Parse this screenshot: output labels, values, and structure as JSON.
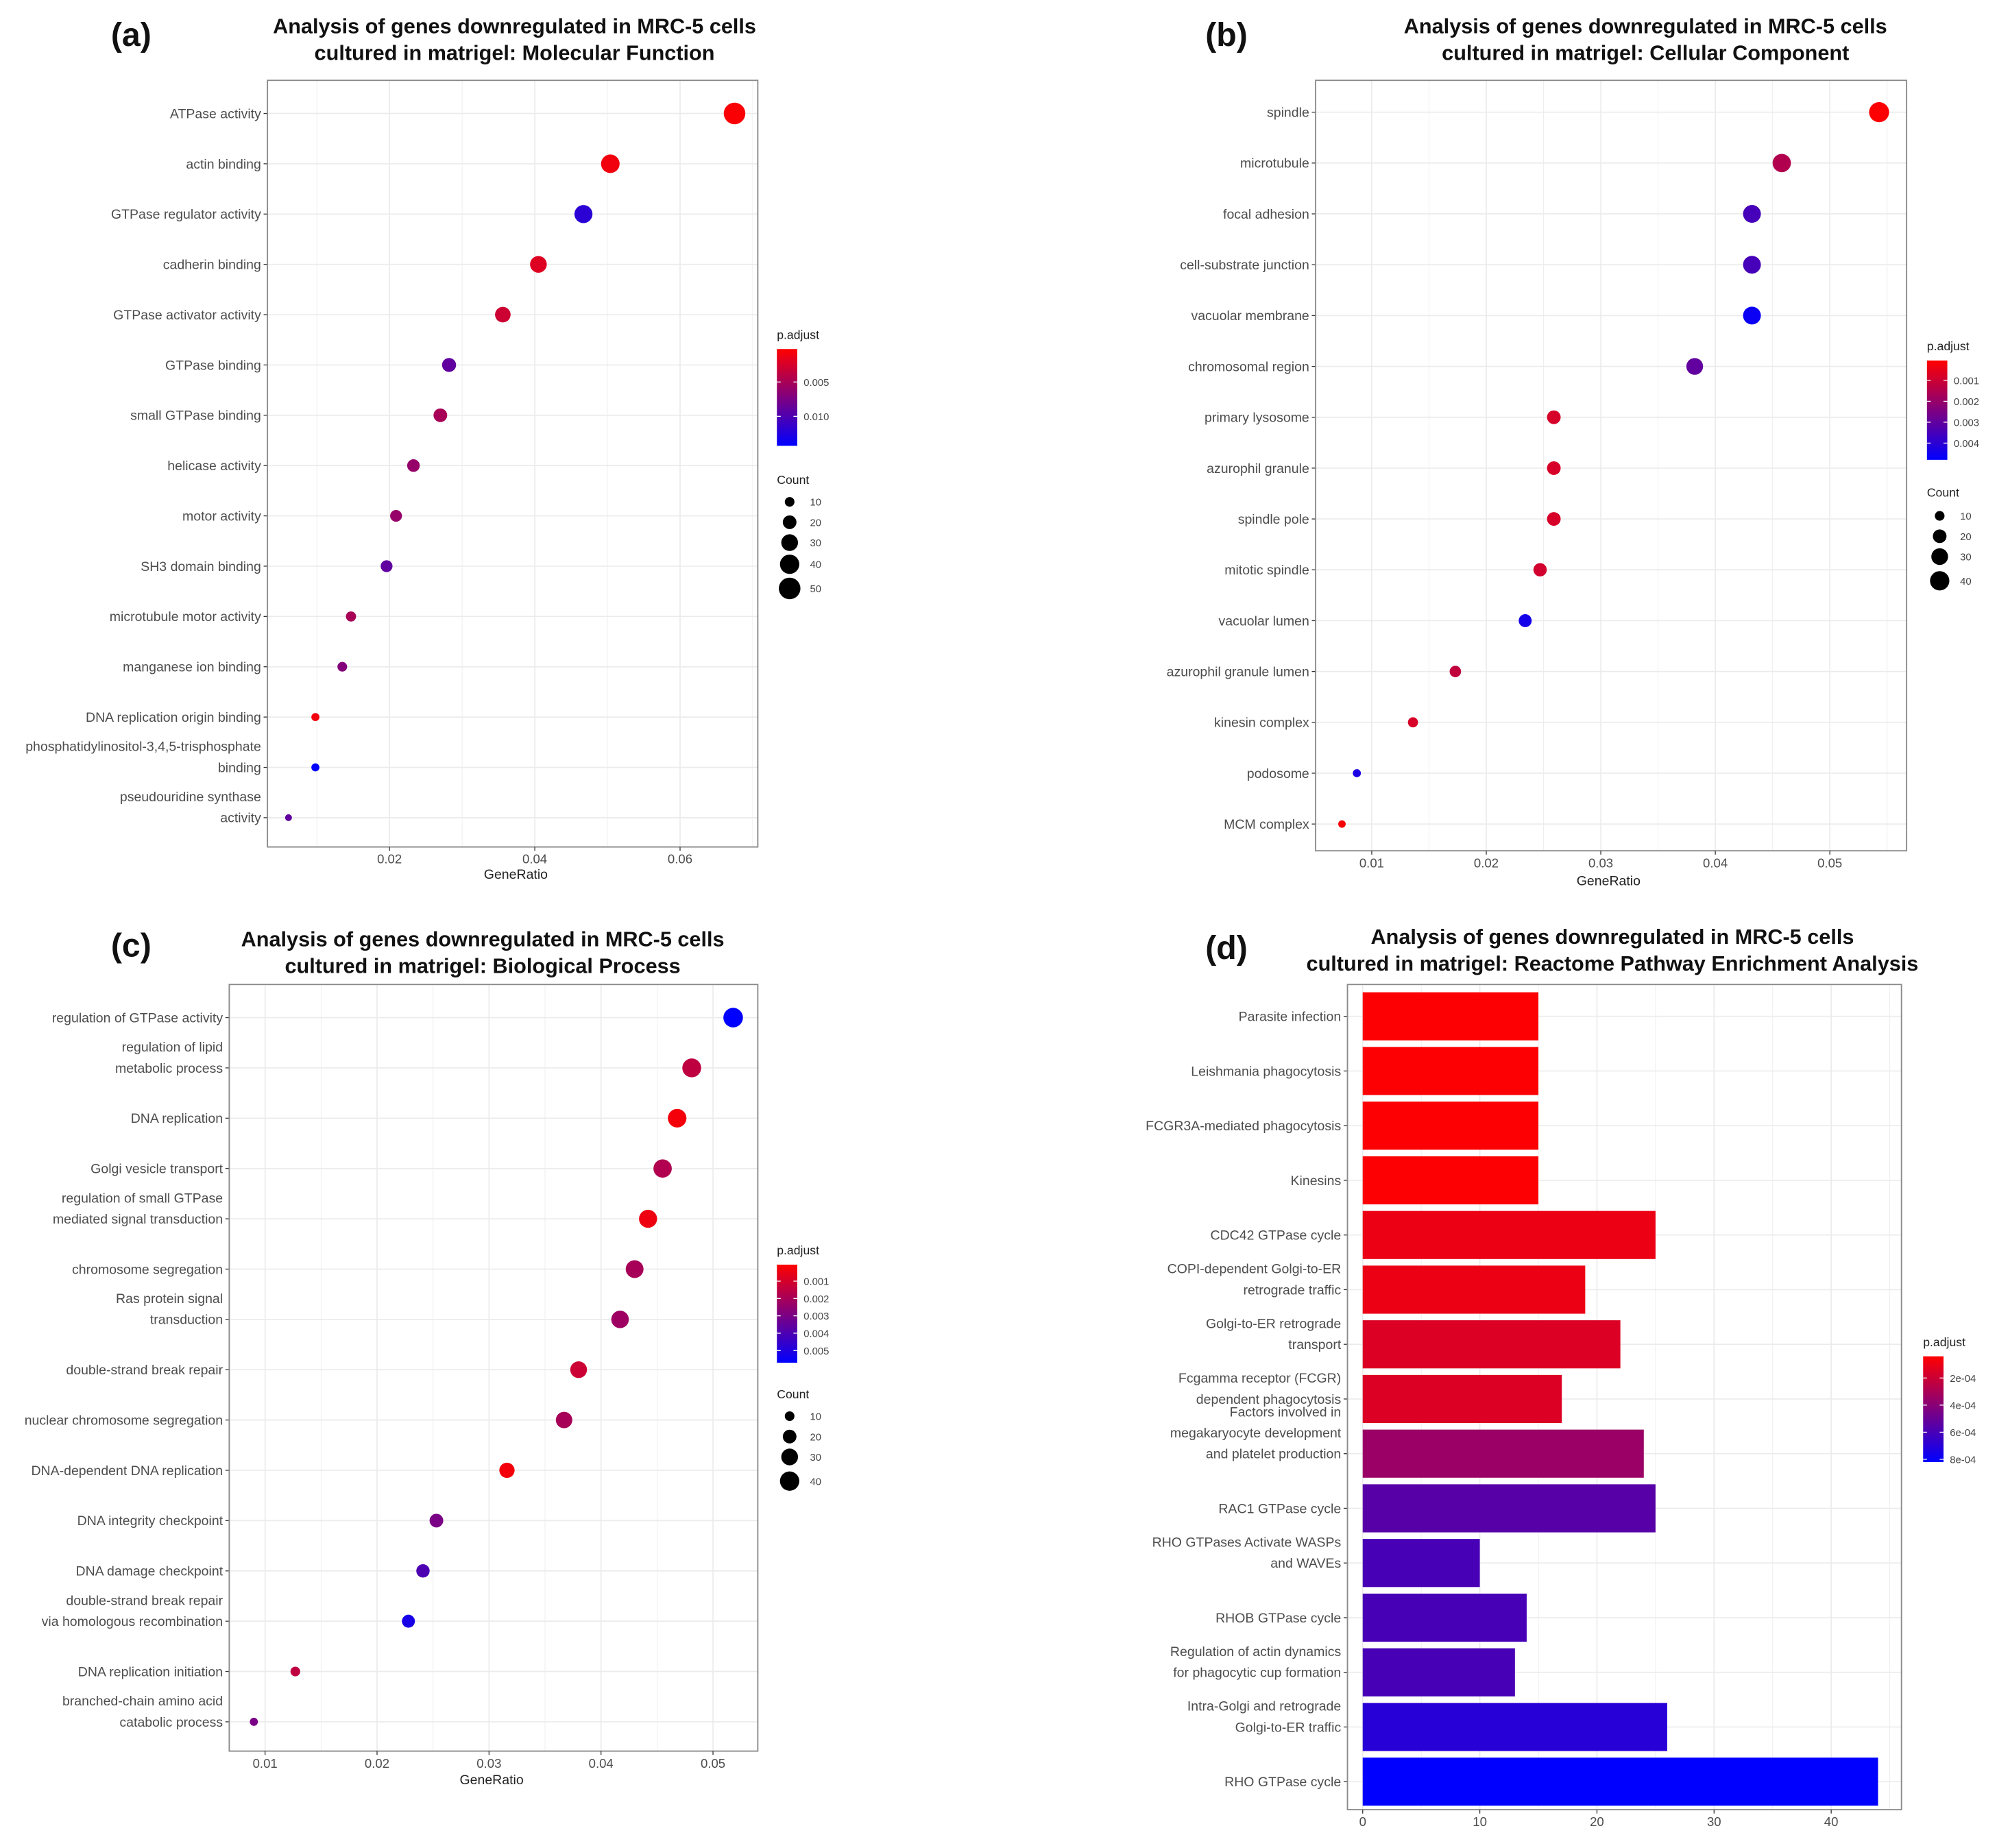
{
  "chart_data": [
    {
      "type": "scatter",
      "panel_label": "(a)",
      "title": [
        "Analysis of genes downregulated in MRC-5 cells",
        "cultured in matrigel: Molecular Function"
      ],
      "xlabel": "GeneRatio",
      "ylabel": "",
      "xlim": [
        0.0032,
        0.0707
      ],
      "xticks": [
        0.02,
        0.04,
        0.06
      ],
      "xtick_labels": [
        "0.02",
        "0.04",
        "0.06"
      ],
      "grid": true,
      "categories": [
        [
          "ATPase activity"
        ],
        [
          "actin binding"
        ],
        [
          "GTPase regulator activity"
        ],
        [
          "cadherin binding"
        ],
        [
          "GTPase activator activity"
        ],
        [
          "GTPase binding"
        ],
        [
          "small GTPase binding"
        ],
        [
          "helicase activity"
        ],
        [
          "motor activity"
        ],
        [
          "SH3 domain binding"
        ],
        [
          "microtubule motor activity"
        ],
        [
          "manganese ion binding"
        ],
        [
          "DNA replication origin binding"
        ],
        [
          "phosphatidylinositol-3,4,5-trisphosphate",
          "binding"
        ],
        [
          "pseudouridine synthase",
          "activity"
        ]
      ],
      "values": [
        0.0675,
        0.0504,
        0.0467,
        0.0405,
        0.0356,
        0.0282,
        0.027,
        0.0233,
        0.0209,
        0.0196,
        0.0147,
        0.0135,
        0.0098,
        0.0098,
        0.0061
      ],
      "counts": [
        50,
        37,
        35,
        30,
        26,
        21,
        20,
        17,
        15,
        15,
        11,
        10,
        7,
        7,
        5
      ],
      "p_adjust": [
        0.0005,
        0.001,
        0.012,
        0.002,
        0.003,
        0.009,
        0.005,
        0.006,
        0.006,
        0.009,
        0.005,
        0.007,
        0.001,
        0.0143,
        0.009
      ],
      "color_legend": {
        "title": "p.adjust",
        "range": [
          0.0002,
          0.0143
        ],
        "ticks": [
          0.005,
          0.01
        ],
        "tick_labels": [
          "0.005",
          "0.010"
        ],
        "low_color": "#ff0000",
        "high_color": "#0000ff"
      },
      "size_legend": {
        "title": "Count",
        "values": [
          10,
          20,
          30,
          40,
          50
        ],
        "labels": [
          "10",
          "20",
          "30",
          "40",
          "50"
        ]
      },
      "legend_placement": "right"
    },
    {
      "type": "scatter",
      "panel_label": "(b)",
      "title": [
        "Analysis of genes downregulated in MRC-5 cells",
        "cultured in matrigel: Cellular Component"
      ],
      "xlabel": "GeneRatio",
      "ylabel": "",
      "xlim": [
        0.0051,
        0.0567
      ],
      "xticks": [
        0.01,
        0.02,
        0.03,
        0.04,
        0.05
      ],
      "xtick_labels": [
        "0.01",
        "0.02",
        "0.03",
        "0.04",
        "0.05"
      ],
      "grid": true,
      "categories": [
        [
          "spindle"
        ],
        [
          "microtubule"
        ],
        [
          "focal adhesion"
        ],
        [
          "cell-substrate junction"
        ],
        [
          "vacuolar membrane"
        ],
        [
          "chromosomal region"
        ],
        [
          "primary lysosome"
        ],
        [
          "azurophil granule"
        ],
        [
          "spindle pole"
        ],
        [
          "mitotic spindle"
        ],
        [
          "vacuolar lumen"
        ],
        [
          "azurophil granule lumen"
        ],
        [
          "kinesin complex"
        ],
        [
          "podosome"
        ],
        [
          "MCM complex"
        ]
      ],
      "values": [
        0.0543,
        0.0458,
        0.0432,
        0.0432,
        0.0432,
        0.0382,
        0.0259,
        0.0259,
        0.0259,
        0.0247,
        0.0234,
        0.0173,
        0.0136,
        0.0087,
        0.0074
      ],
      "counts": [
        43,
        36,
        34,
        34,
        34,
        30,
        20,
        20,
        20,
        19,
        18,
        14,
        11,
        7,
        6
      ],
      "p_adjust": [
        0.0001,
        0.0015,
        0.0035,
        0.0035,
        0.0046,
        0.003,
        0.0008,
        0.0008,
        0.0008,
        0.0009,
        0.0044,
        0.0012,
        0.0008,
        0.0043,
        0.0002
      ],
      "color_legend": {
        "title": "p.adjust",
        "range": [
          5e-05,
          0.0048
        ],
        "ticks": [
          0.001,
          0.002,
          0.003,
          0.004
        ],
        "tick_labels": [
          "0.001",
          "0.002",
          "0.003",
          "0.004"
        ],
        "low_color": "#ff0000",
        "high_color": "#0000ff"
      },
      "size_legend": {
        "title": "Count",
        "values": [
          10,
          20,
          30,
          40
        ],
        "labels": [
          "10",
          "20",
          "30",
          "40"
        ]
      },
      "legend_placement": "right"
    },
    {
      "type": "scatter",
      "panel_label": "(c)",
      "title": [
        "Analysis of genes downregulated in MRC-5 cells",
        "cultured in matrigel: Biological Process"
      ],
      "xlabel": "GeneRatio",
      "ylabel": "",
      "xlim": [
        0.0068,
        0.054
      ],
      "xticks": [
        0.01,
        0.02,
        0.03,
        0.04,
        0.05
      ],
      "xtick_labels": [
        "0.01",
        "0.02",
        "0.03",
        "0.04",
        "0.05"
      ],
      "grid": true,
      "categories": [
        [
          "regulation of GTPase activity"
        ],
        [
          "regulation of lipid",
          "metabolic process"
        ],
        [
          "DNA replication"
        ],
        [
          "Golgi vesicle transport"
        ],
        [
          "regulation of small GTPase",
          "mediated signal transduction"
        ],
        [
          "chromosome segregation"
        ],
        [
          "Ras protein signal",
          "transduction"
        ],
        [
          "double-strand break repair"
        ],
        [
          "nuclear chromosome segregation"
        ],
        [
          "DNA-dependent DNA replication"
        ],
        [
          "DNA integrity checkpoint"
        ],
        [
          "DNA damage checkpoint"
        ],
        [
          "double-strand break repair",
          "via homologous recombination"
        ],
        [
          "DNA replication initiation"
        ],
        [
          "branched-chain amino acid",
          "catabolic process"
        ]
      ],
      "values": [
        0.0518,
        0.0481,
        0.0468,
        0.0455,
        0.0442,
        0.043,
        0.0417,
        0.038,
        0.0367,
        0.0316,
        0.0253,
        0.0241,
        0.0228,
        0.0127,
        0.009
      ],
      "counts": [
        41,
        38,
        37,
        36,
        35,
        34,
        33,
        30,
        29,
        25,
        20,
        19,
        18,
        10,
        7
      ],
      "p_adjust": [
        0.0057,
        0.0015,
        0.0003,
        0.0018,
        0.0004,
        0.002,
        0.0022,
        0.0012,
        0.002,
        0.0003,
        0.003,
        0.004,
        0.0052,
        0.0015,
        0.003
      ],
      "color_legend": {
        "title": "p.adjust",
        "range": [
          5e-05,
          0.0057
        ],
        "ticks": [
          0.001,
          0.002,
          0.003,
          0.004,
          0.005
        ],
        "tick_labels": [
          "0.001",
          "0.002",
          "0.003",
          "0.004",
          "0.005"
        ],
        "low_color": "#ff0000",
        "high_color": "#0000ff"
      },
      "size_legend": {
        "title": "Count",
        "values": [
          10,
          20,
          30,
          40
        ],
        "labels": [
          "10",
          "20",
          "30",
          "40"
        ]
      },
      "legend_placement": "right"
    },
    {
      "type": "bar",
      "orientation": "horizontal",
      "panel_label": "(d)",
      "title": [
        "Analysis of genes downregulated in MRC-5 cells",
        "cultured in matrigel: Reactome Pathway Enrichment Analysis"
      ],
      "xlabel": "",
      "ylabel": "",
      "xlim": [
        -1.3,
        46
      ],
      "xticks": [
        0,
        10,
        20,
        30,
        40
      ],
      "xtick_labels": [
        "0",
        "10",
        "20",
        "30",
        "40"
      ],
      "grid": true,
      "categories": [
        [
          "Parasite infection"
        ],
        [
          "Leishmania phagocytosis"
        ],
        [
          "FCGR3A-mediated phagocytosis"
        ],
        [
          "Kinesins"
        ],
        [
          "CDC42 GTPase cycle"
        ],
        [
          "COPI-dependent Golgi-to-ER",
          "retrograde traffic"
        ],
        [
          "Golgi-to-ER retrograde",
          "transport"
        ],
        [
          "Fcgamma receptor (FCGR)",
          "dependent phagocytosis"
        ],
        [
          "Factors involved in",
          "megakaryocyte development",
          "and platelet production"
        ],
        [
          "RAC1 GTPase cycle"
        ],
        [
          "RHO GTPases Activate WASPs",
          "and WAVEs"
        ],
        [
          "RHOB GTPase cycle"
        ],
        [
          "Regulation of actin dynamics",
          "for phagocytic cup formation"
        ],
        [
          "Intra-Golgi and retrograde",
          "Golgi-to-ER traffic"
        ],
        [
          "RHO GTPase cycle"
        ]
      ],
      "values": [
        15,
        15,
        15,
        15,
        25,
        19,
        22,
        17,
        24,
        25,
        10,
        14,
        13,
        26,
        44
      ],
      "p_adjust": [
        5e-05,
        5e-05,
        5e-05,
        5e-05,
        0.0001,
        0.0001,
        0.00015,
        0.00015,
        0.00035,
        0.00055,
        0.0006,
        0.0006,
        0.0006,
        0.0007,
        0.00082
      ],
      "color_legend": {
        "title": "p.adjust",
        "range": [
          4e-05,
          0.00082
        ],
        "ticks": [
          0.0002,
          0.0004,
          0.0006,
          0.0008
        ],
        "tick_labels": [
          "2e-04",
          "4e-04",
          "6e-04",
          "8e-04"
        ],
        "low_color": "#ff0000",
        "high_color": "#0000ff"
      },
      "legend_placement": "right"
    }
  ]
}
